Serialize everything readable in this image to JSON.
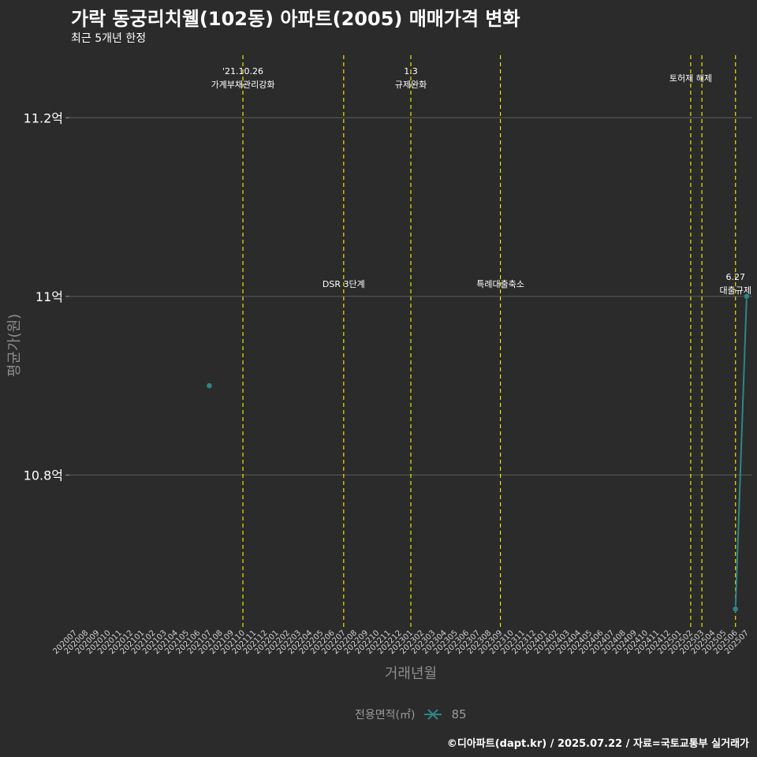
{
  "chart_data": {
    "type": "line",
    "title": "가락 동궁리치웰(102동) 아파트(2005) 매매가격 변화",
    "subtitle": "최근 5개년 한정",
    "xlabel": "거래년월",
    "ylabel": "평균가(원)",
    "caption": "©디아파트(dapt.kr) / 2025.07.22 / 자료=국토교통부 실거래가",
    "legend_title": "전용면적(㎡)",
    "categories": [
      "202007",
      "202008",
      "202009",
      "202010",
      "202011",
      "202012",
      "202101",
      "202102",
      "202103",
      "202104",
      "202105",
      "202106",
      "202107",
      "202108",
      "202109",
      "202110",
      "202111",
      "202112",
      "202201",
      "202202",
      "202203",
      "202204",
      "202205",
      "202206",
      "202207",
      "202208",
      "202209",
      "202210",
      "202211",
      "202212",
      "202301",
      "202302",
      "202303",
      "202304",
      "202305",
      "202306",
      "202307",
      "202308",
      "202309",
      "202310",
      "202311",
      "202312",
      "202401",
      "202402",
      "202403",
      "202404",
      "202405",
      "202406",
      "202407",
      "202408",
      "202409",
      "202410",
      "202411",
      "202412",
      "202501",
      "202502",
      "202503",
      "202504",
      "202505",
      "202506",
      "202507"
    ],
    "ylim": [
      10.63,
      11.27
    ],
    "yticks": [
      10.8,
      11.0,
      11.2
    ],
    "ytick_labels": [
      "10.8억",
      "11억",
      "11.2억"
    ],
    "grid": true,
    "legend_position": "bottom",
    "series": [
      {
        "name": "85",
        "color": "#2f8585",
        "points": [
          {
            "x": "202107",
            "y": 10.9
          },
          {
            "x": "202506",
            "y": 10.65
          },
          {
            "x": "202507",
            "y": 11.0
          }
        ]
      }
    ],
    "events": [
      {
        "x": "202110",
        "line1": "'21.10.26",
        "line2": "가계부채관리강화",
        "row": "top"
      },
      {
        "x": "202207",
        "line1": "DSR 3단계",
        "line2": "",
        "row": "middle"
      },
      {
        "x": "202301",
        "line1": "1.3",
        "line2": "규제완화",
        "row": "top"
      },
      {
        "x": "202309",
        "line1": "특례대출축소",
        "line2": "",
        "row": "middle"
      },
      {
        "x": "202502",
        "line1": "토허제 해제",
        "line2": "",
        "row": "upper"
      },
      {
        "x": "202503",
        "line1": "",
        "line2": "",
        "row": "none"
      },
      {
        "x": "202506",
        "line1": "6.27",
        "line2": "대출규제",
        "row": "middle-right"
      }
    ]
  }
}
